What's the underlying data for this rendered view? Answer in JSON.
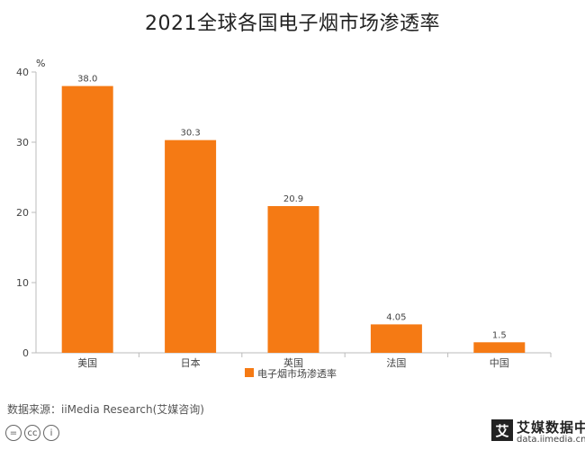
{
  "chart_data": {
    "type": "bar",
    "title": "2021全球各国电子烟市场渗透率",
    "ylabel": "%",
    "xlabel": "",
    "categories": [
      "美国",
      "日本",
      "英国",
      "法国",
      "中国"
    ],
    "series": [
      {
        "name": "电子烟市场渗透率",
        "values": [
          38.0,
          30.3,
          20.9,
          4.05,
          1.5
        ],
        "labels": [
          "38.0",
          "30.3",
          "20.9",
          "4.05",
          "1.5"
        ]
      }
    ],
    "ylim": [
      0,
      40
    ],
    "yticks": [
      0,
      10,
      20,
      30,
      40
    ],
    "grid": false,
    "legend_position": "bottom",
    "bar_color": "#F57A14"
  },
  "footer": {
    "source": "数据来源：iiMedia Research(艾媒咨询)",
    "license_icons": [
      "=",
      "cc",
      "i"
    ],
    "brand_mark": "艾",
    "brand_name": "艾媒数据中心",
    "brand_url": "data.iimedia.cn"
  }
}
